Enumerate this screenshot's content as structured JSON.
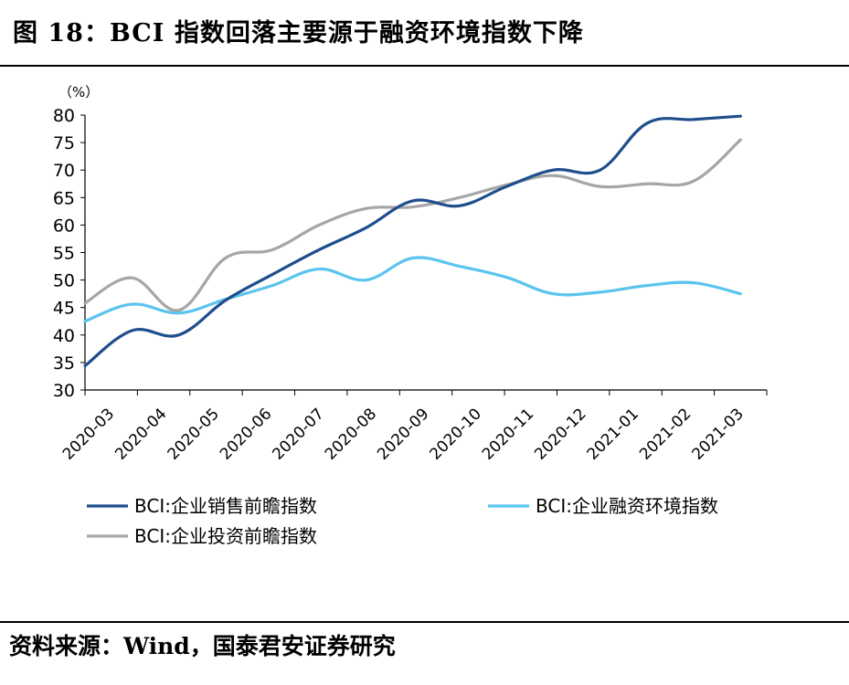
{
  "title": "图 18：BCI 指数回落主要源于融资环境指数下降",
  "source": "资料来源：Wind，国泰君安证券研究",
  "chart_data": {
    "type": "line",
    "unit_label": "（%）",
    "ylim": [
      30,
      80
    ],
    "yticks": [
      30,
      35,
      40,
      45,
      50,
      55,
      60,
      65,
      70,
      75,
      80
    ],
    "categories": [
      "2020-03",
      "2020-04",
      "2020-05",
      "2020-06",
      "2020-07",
      "2020-08",
      "2020-09",
      "2020-10",
      "2020-11",
      "2020-12",
      "2021-01",
      "2021-02",
      "2021-03"
    ],
    "grid": false,
    "legend_position": "bottom",
    "series": [
      {
        "name": "BCI:企业销售前瞻指数",
        "color": "#1f4e8c",
        "points": [
          [
            0,
            34.4
          ],
          [
            0.5,
            40.8
          ],
          [
            1,
            40.0
          ],
          [
            1.5,
            46.3
          ],
          [
            2,
            51.0
          ],
          [
            2.5,
            55.5
          ],
          [
            3,
            59.5
          ],
          [
            3.5,
            64.4
          ],
          [
            4,
            63.5
          ],
          [
            4.5,
            67.0
          ],
          [
            5,
            70.0
          ],
          [
            5.5,
            70.0
          ],
          [
            6,
            78.5
          ],
          [
            6.5,
            79.2
          ],
          [
            7,
            79.8
          ]
        ]
      },
      {
        "name": "BCI:企业融资环境指数",
        "color": "#5bc4ee",
        "points": [
          [
            0,
            42.5
          ],
          [
            0.5,
            45.6
          ],
          [
            1,
            44.0
          ],
          [
            1.5,
            46.5
          ],
          [
            2,
            49.0
          ],
          [
            2.5,
            52.0
          ],
          [
            3,
            50.0
          ],
          [
            3.5,
            54.0
          ],
          [
            4,
            52.5
          ],
          [
            4.5,
            50.5
          ],
          [
            5,
            47.5
          ],
          [
            5.5,
            47.8
          ],
          [
            6,
            49.0
          ],
          [
            6.5,
            49.5
          ],
          [
            7,
            47.5
          ]
        ]
      },
      {
        "name": "BCI:企业投资前瞻指数",
        "color": "#a6a6a6",
        "points": [
          [
            0,
            45.8
          ],
          [
            0.5,
            50.4
          ],
          [
            1,
            44.5
          ],
          [
            1.5,
            54.0
          ],
          [
            2,
            55.5
          ],
          [
            2.5,
            60.0
          ],
          [
            3,
            63.0
          ],
          [
            3.5,
            63.3
          ],
          [
            4,
            65.0
          ],
          [
            4.5,
            67.3
          ],
          [
            5,
            69.0
          ],
          [
            5.5,
            67.0
          ],
          [
            6,
            67.5
          ],
          [
            6.5,
            68.0
          ],
          [
            7,
            75.5
          ]
        ]
      }
    ]
  }
}
